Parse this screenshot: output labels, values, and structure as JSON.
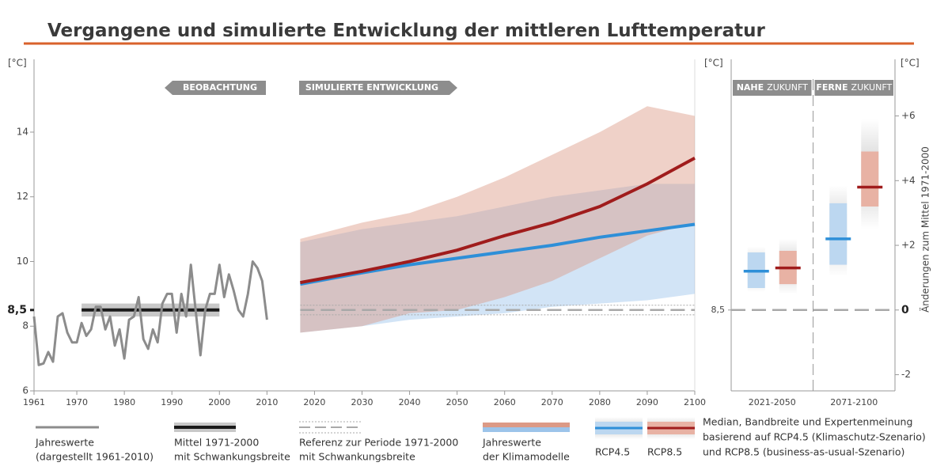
{
  "title": "Vergangene und simulierte Entwicklung der mittleren Lufttemperatur",
  "chart_data": [
    {
      "type": "line",
      "y_unit": "[°C]",
      "label_observed": "BEOBACHTUNG",
      "label_simulated": "SIMULIERTE ENTWICKLUNG",
      "xlim": [
        1961,
        2100
      ],
      "xticks": [
        1961,
        1970,
        1980,
        1990,
        2000,
        2010,
        2020,
        2030,
        2040,
        2050,
        2060,
        2070,
        2080,
        2090,
        2100
      ],
      "ylim": [
        6,
        16.25
      ],
      "yticks": [
        6,
        8,
        10,
        12,
        14,
        {
          "value": 8.5,
          "label": "8,5"
        }
      ],
      "observed": {
        "color": "#8c8c8c",
        "x": [
          1961,
          1962,
          1963,
          1964,
          1965,
          1966,
          1967,
          1968,
          1969,
          1970,
          1971,
          1972,
          1973,
          1974,
          1975,
          1976,
          1977,
          1978,
          1979,
          1980,
          1981,
          1982,
          1983,
          1984,
          1985,
          1986,
          1987,
          1988,
          1989,
          1990,
          1991,
          1992,
          1993,
          1994,
          1995,
          1996,
          1997,
          1998,
          1999,
          2000,
          2001,
          2002,
          2003,
          2004,
          2005,
          2006,
          2007,
          2008,
          2009,
          2010
        ],
        "values": [
          8.3,
          6.8,
          6.85,
          7.2,
          6.9,
          8.3,
          8.4,
          7.8,
          7.5,
          7.5,
          8.1,
          7.7,
          7.9,
          8.6,
          8.6,
          7.9,
          8.3,
          7.4,
          7.9,
          7.0,
          8.2,
          8.3,
          8.9,
          7.6,
          7.3,
          7.9,
          7.5,
          8.7,
          9.0,
          9.0,
          7.8,
          9.0,
          8.3,
          9.9,
          8.5,
          7.1,
          8.5,
          9.0,
          9.0,
          9.9,
          8.9,
          9.6,
          9.1,
          8.5,
          8.3,
          9.0,
          10.0,
          9.8,
          9.4,
          8.2
        ]
      },
      "mean": {
        "color": "#1a1a1a",
        "band_color": "#c8c8c8",
        "x": [
          1971,
          2000
        ],
        "values": [
          8.5,
          8.5
        ],
        "lower": [
          8.3,
          8.3
        ],
        "upper": [
          8.7,
          8.7
        ]
      },
      "reference": {
        "color": "#a8a8a8",
        "x": [
          2017,
          2100
        ],
        "values": [
          8.5,
          8.5
        ],
        "lower": [
          8.35,
          8.35
        ],
        "upper": [
          8.65,
          8.65
        ]
      },
      "models": [
        {
          "name": "RCP4.5",
          "color": "#2e8fd8",
          "band_color": "#9cc4ea",
          "x": [
            2017,
            2030,
            2040,
            2050,
            2060,
            2070,
            2080,
            2090,
            2100
          ],
          "median": [
            9.3,
            9.65,
            9.9,
            10.1,
            10.3,
            10.5,
            10.75,
            10.95,
            11.15
          ],
          "lower": [
            7.8,
            8.0,
            8.2,
            8.3,
            8.4,
            8.6,
            8.7,
            8.8,
            9.0
          ],
          "upper": [
            10.6,
            11.0,
            11.2,
            11.4,
            11.7,
            12.0,
            12.2,
            12.4,
            12.4
          ]
        },
        {
          "name": "RCP8.5",
          "color": "#a01c1c",
          "band_color": "#dc9a86",
          "x": [
            2017,
            2030,
            2040,
            2050,
            2060,
            2070,
            2080,
            2090,
            2100
          ],
          "median": [
            9.35,
            9.7,
            10.0,
            10.35,
            10.8,
            11.2,
            11.7,
            12.4,
            13.2
          ],
          "lower": [
            7.8,
            8.0,
            8.4,
            8.5,
            8.9,
            9.4,
            10.1,
            10.8,
            11.2
          ],
          "upper": [
            10.7,
            11.2,
            11.5,
            12.0,
            12.6,
            13.3,
            14.0,
            14.8,
            14.5
          ]
        }
      ]
    },
    {
      "type": "range",
      "y_unit": "[°C]",
      "y2_unit": "[°C]",
      "y2_label": "Änderungen zum Mittel 1971-2000",
      "headers": [
        [
          "NAHE",
          "ZUKUNFT"
        ],
        [
          "FERNE",
          "ZUKUNFT"
        ]
      ],
      "columns": [
        "2021-2050",
        "2071-2100"
      ],
      "ylim": [
        6,
        16.25
      ],
      "yticks": [
        {
          "value": 8.5,
          "label": "8,5"
        }
      ],
      "y2lim": [
        -2.5,
        7.75
      ],
      "y2ticks": [
        {
          "value": 6,
          "label": "+6"
        },
        {
          "value": 4,
          "label": "+4"
        },
        {
          "value": 2,
          "label": "+2"
        },
        0,
        -2
      ],
      "series": [
        {
          "color": "#2e8fd8",
          "band_color": "#bcd7f0",
          "median": [
            1.2,
            2.2
          ],
          "likely_low": [
            0.68,
            1.4
          ],
          "likely_high": [
            1.78,
            3.3
          ],
          "outer_low": [
            0.56,
            1.05
          ],
          "outer_high": [
            1.95,
            3.85
          ]
        },
        {
          "color": "#a01c1c",
          "band_color": "#e8b2a4",
          "median": [
            1.3,
            3.8
          ],
          "likely_low": [
            0.8,
            3.2
          ],
          "likely_high": [
            1.83,
            4.9
          ],
          "outer_low": [
            0.5,
            2.5
          ],
          "outer_high": [
            2.2,
            5.9
          ]
        }
      ]
    }
  ],
  "legend": [
    [
      "Jahreswerte",
      "(dargestellt 1961-2010)"
    ],
    [
      "Mittel 1971-2000",
      "mit Schwankungsbreite"
    ],
    [
      "Referenz zur Periode 1971-2000",
      "mit Schwankungsbreite"
    ],
    [
      "Jahreswerte",
      "der Klimamodelle"
    ],
    [
      "Median, Bandbreite und Expertenmeinung",
      "basierend auf RCP4.5 (Klimaschutz-Szenario)",
      "und RCP8.5 (business-as-usual-Szenario)"
    ]
  ]
}
